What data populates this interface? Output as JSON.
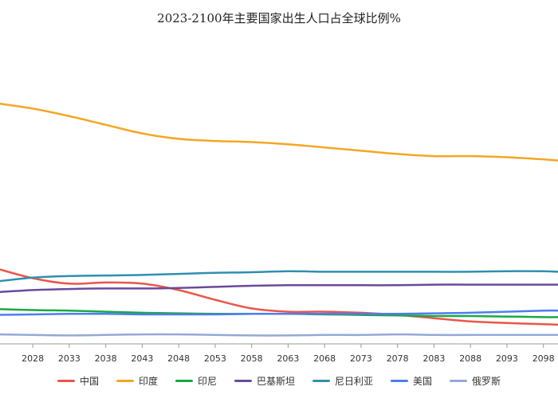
{
  "chart_data": {
    "type": "line",
    "title": "2023-2100年主要国家出生人口占全球比例%",
    "xlabel": "",
    "ylabel": "",
    "x_ticks": [
      "2028",
      "2033",
      "2038",
      "2043",
      "2048",
      "2053",
      "2058",
      "2063",
      "2068",
      "2073",
      "2078",
      "2083",
      "2088",
      "2093",
      "2098"
    ],
    "xlim": [
      2023,
      2100
    ],
    "ylim": [
      0,
      28
    ],
    "grid": false,
    "legend_position": "bottom",
    "series": [
      {
        "name": "中国",
        "color": "#e8574a",
        "x": [
          2023,
          2028,
          2033,
          2038,
          2043,
          2048,
          2053,
          2058,
          2063,
          2068,
          2073,
          2078,
          2083,
          2088,
          2093,
          2098,
          2100
        ],
        "values": [
          7.2,
          6.3,
          5.8,
          5.9,
          5.8,
          5.2,
          4.3,
          3.5,
          3.2,
          3.2,
          3.1,
          2.9,
          2.6,
          2.3,
          2.15,
          2.05,
          2.0
        ]
      },
      {
        "name": "印度",
        "color": "#f5a623",
        "x": [
          2023,
          2028,
          2033,
          2038,
          2043,
          2048,
          2053,
          2058,
          2063,
          2068,
          2073,
          2078,
          2083,
          2088,
          2093,
          2098,
          2100
        ],
        "values": [
          22.5,
          22.0,
          21.3,
          20.5,
          19.7,
          19.2,
          19.0,
          18.9,
          18.7,
          18.4,
          18.1,
          17.8,
          17.6,
          17.6,
          17.5,
          17.3,
          17.2
        ]
      },
      {
        "name": "印尼",
        "color": "#1aa845",
        "x": [
          2023,
          2028,
          2033,
          2038,
          2043,
          2048,
          2053,
          2058,
          2063,
          2068,
          2073,
          2078,
          2083,
          2088,
          2093,
          2098,
          2100
        ],
        "values": [
          3.45,
          3.35,
          3.3,
          3.2,
          3.1,
          3.05,
          3.0,
          3.0,
          3.0,
          2.95,
          2.9,
          2.85,
          2.8,
          2.8,
          2.75,
          2.7,
          2.7
        ]
      },
      {
        "name": "巴基斯坦",
        "color": "#6a4a9c",
        "x": [
          2023,
          2028,
          2033,
          2038,
          2043,
          2048,
          2053,
          2058,
          2063,
          2068,
          2073,
          2078,
          2083,
          2088,
          2093,
          2098,
          2100
        ],
        "values": [
          5.0,
          5.2,
          5.3,
          5.35,
          5.35,
          5.4,
          5.5,
          5.6,
          5.65,
          5.65,
          5.65,
          5.65,
          5.7,
          5.7,
          5.7,
          5.7,
          5.7
        ]
      },
      {
        "name": "尼日利亚",
        "color": "#2f8fb0",
        "x": [
          2023,
          2028,
          2033,
          2038,
          2043,
          2048,
          2053,
          2058,
          2063,
          2068,
          2073,
          2078,
          2083,
          2088,
          2093,
          2098,
          2100
        ],
        "values": [
          6.0,
          6.35,
          6.5,
          6.55,
          6.6,
          6.7,
          6.8,
          6.85,
          6.95,
          6.9,
          6.9,
          6.9,
          6.9,
          6.9,
          6.95,
          6.95,
          6.9
        ]
      },
      {
        "name": "美国",
        "color": "#4d7df0",
        "x": [
          2023,
          2028,
          2033,
          2038,
          2043,
          2048,
          2053,
          2058,
          2063,
          2068,
          2073,
          2078,
          2083,
          2088,
          2093,
          2098,
          2100
        ],
        "values": [
          2.9,
          2.95,
          3.0,
          3.0,
          2.95,
          2.95,
          2.95,
          3.0,
          3.0,
          3.0,
          3.0,
          3.0,
          3.05,
          3.1,
          3.2,
          3.3,
          3.3
        ]
      },
      {
        "name": "俄罗斯",
        "color": "#93a9d6",
        "x": [
          2023,
          2028,
          2033,
          2038,
          2043,
          2048,
          2053,
          2058,
          2063,
          2068,
          2073,
          2078,
          2083,
          2088,
          2093,
          2098,
          2100
        ],
        "values": [
          1.1,
          1.05,
          1.0,
          1.05,
          1.1,
          1.1,
          1.05,
          1.0,
          1.0,
          1.05,
          1.05,
          1.1,
          1.05,
          1.05,
          1.05,
          1.05,
          1.05
        ]
      }
    ]
  }
}
